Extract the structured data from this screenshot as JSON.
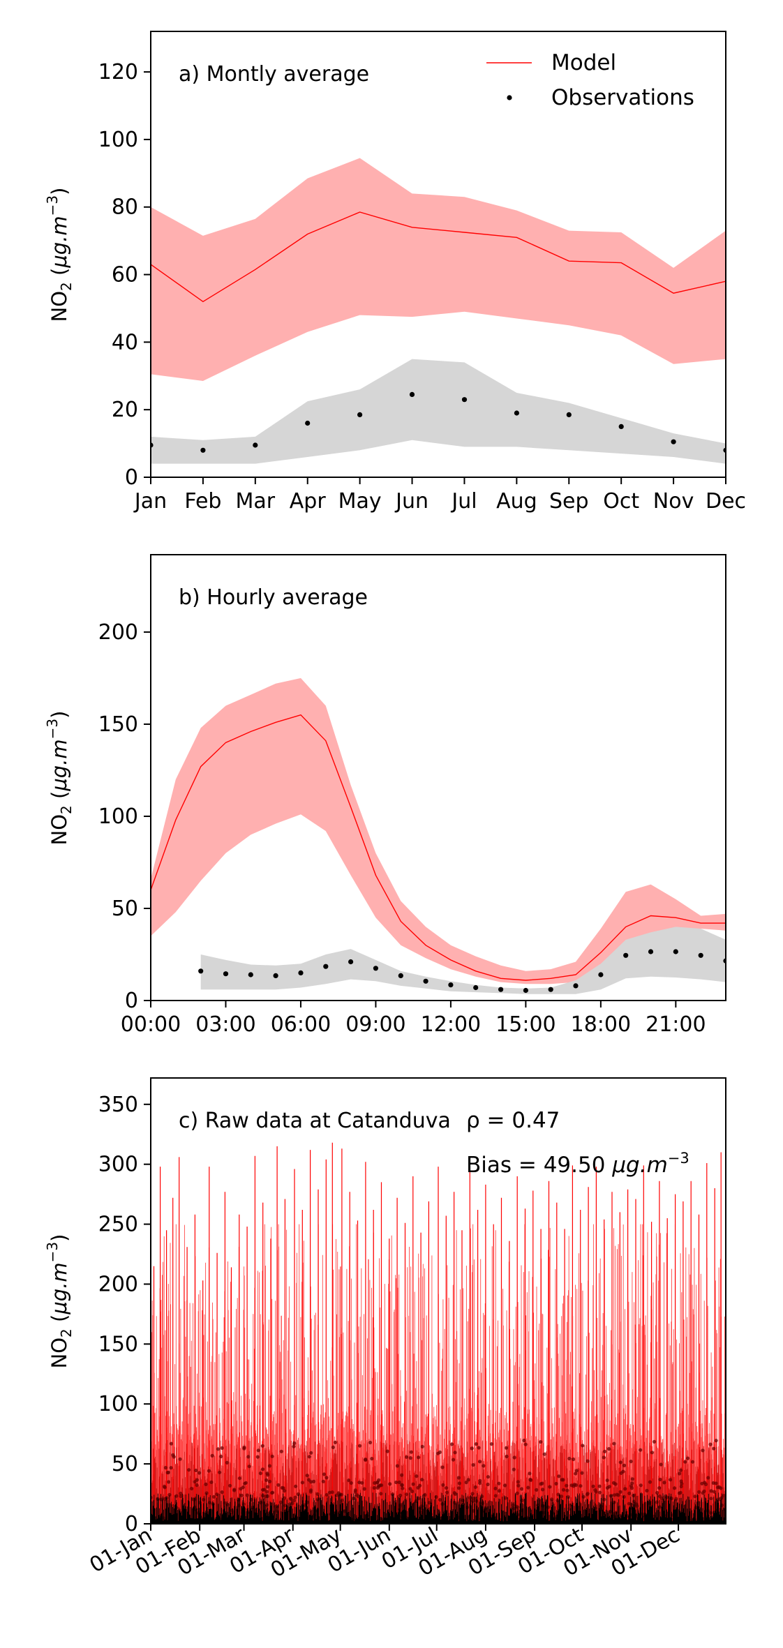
{
  "chart_data": [
    {
      "id": "monthly",
      "type": "line",
      "title": "a) Montly average",
      "ylabel": "NO2 (µg.m−3)",
      "ylim": [
        0,
        132
      ],
      "yticks": [
        0,
        20,
        40,
        60,
        80,
        100,
        120
      ],
      "x": [
        0,
        1,
        2,
        3,
        4,
        5,
        6,
        7,
        8,
        9,
        10,
        11
      ],
      "xlim": [
        0,
        11
      ],
      "xtick_labels": [
        "Jan",
        "Feb",
        "Mar",
        "Apr",
        "May",
        "Jun",
        "Jul",
        "Aug",
        "Sep",
        "Oct",
        "Nov",
        "Dec"
      ],
      "legend": {
        "placement": "top-right",
        "model_label": "Model",
        "obs_label": "Observations"
      },
      "series": [
        {
          "name": "Model",
          "kind": "line",
          "color": "#ff0000",
          "band_color": "#ffb0b0",
          "values": [
            63,
            52,
            61.5,
            72,
            78.5,
            74,
            72.5,
            71,
            64,
            63.5,
            54.5,
            58
          ],
          "band_upper": [
            80,
            71.5,
            76.5,
            88.5,
            94.5,
            84,
            83,
            79,
            73,
            72.5,
            62,
            73
          ],
          "band_lower": [
            30.5,
            28.5,
            36,
            43,
            48,
            47.5,
            49,
            47,
            45,
            42,
            33.5,
            35
          ]
        },
        {
          "name": "Observations",
          "kind": "points",
          "color": "#000000",
          "band_color": "#d6d6d6",
          "values": [
            9.5,
            8,
            9.5,
            16,
            18.5,
            24.5,
            23,
            19,
            18.5,
            15,
            10.5,
            8
          ],
          "band_upper": [
            12,
            11,
            12,
            22.5,
            26,
            35,
            34,
            25,
            22,
            17.5,
            13,
            10
          ],
          "band_lower": [
            4,
            4,
            4,
            6,
            8,
            11,
            9,
            9,
            8,
            7,
            6,
            4
          ]
        }
      ]
    },
    {
      "id": "hourly",
      "type": "line",
      "title": "b) Hourly average",
      "ylabel": "NO2 (µg.m−3)",
      "ylim": [
        0,
        242
      ],
      "yticks": [
        0,
        50,
        100,
        150,
        200
      ],
      "xlim": [
        0,
        23
      ],
      "xticks": [
        0,
        3,
        6,
        9,
        12,
        15,
        18,
        21
      ],
      "xtick_labels": [
        "00:00",
        "03:00",
        "06:00",
        "09:00",
        "12:00",
        "15:00",
        "18:00",
        "21:00"
      ],
      "series": [
        {
          "name": "Model",
          "kind": "line",
          "color": "#ff0000",
          "band_color": "#ffb0b0",
          "x": [
            0,
            1,
            2,
            3,
            4,
            5,
            6,
            7,
            8,
            9,
            10,
            11,
            12,
            13,
            14,
            15,
            16,
            17,
            18,
            19,
            20,
            21,
            22,
            23
          ],
          "values": [
            60,
            98,
            127,
            140,
            146,
            151,
            155,
            141,
            105,
            68,
            43,
            30,
            22,
            16,
            12,
            11,
            12,
            14,
            26,
            40,
            46,
            45,
            42,
            42
          ],
          "band_upper": [
            66,
            120,
            148,
            160,
            166,
            172,
            175,
            160,
            117,
            80,
            54,
            40,
            30,
            24,
            19,
            16,
            17,
            21,
            39,
            59,
            63,
            55,
            46,
            47
          ],
          "band_lower": [
            35,
            48,
            65,
            80,
            90,
            96,
            101,
            92,
            68,
            45,
            30,
            23,
            17,
            13,
            10,
            9,
            9,
            10,
            16,
            25,
            31,
            36,
            39,
            38
          ]
        },
        {
          "name": "Observations",
          "kind": "points",
          "color": "#000000",
          "band_color": "#d6d6d6",
          "x": [
            2,
            3,
            4,
            5,
            6,
            7,
            8,
            9,
            10,
            11,
            12,
            13,
            14,
            15,
            16,
            17,
            18,
            19,
            20,
            21,
            22,
            23
          ],
          "values": [
            16,
            14.5,
            14,
            13.5,
            15,
            18.5,
            21,
            17.5,
            13.5,
            10.5,
            8.5,
            7,
            6,
            5.5,
            6,
            8,
            14,
            24.5,
            26.5,
            26.5,
            24.5,
            21.5
          ],
          "band_upper": [
            25,
            22,
            19.5,
            19,
            20,
            25,
            28,
            22,
            16,
            13,
            10.5,
            8.5,
            7,
            6.5,
            7,
            11,
            20,
            33,
            37,
            40,
            39,
            33
          ],
          "band_lower": [
            6,
            6,
            6,
            6,
            7,
            9,
            11.5,
            10.5,
            8,
            6.5,
            5,
            4.5,
            4,
            3.5,
            3.5,
            3.5,
            6,
            12,
            13,
            12.5,
            11.5,
            10
          ]
        }
      ]
    },
    {
      "id": "raw",
      "type": "line",
      "title": "c) Raw data at Catanduva",
      "ylabel": "NO2 (µg.m−3)",
      "ylim": [
        0,
        372
      ],
      "yticks": [
        0,
        50,
        100,
        150,
        200,
        250,
        300,
        350
      ],
      "xlim": [
        "2019-01-01",
        "2019-12-31"
      ],
      "xticks": [
        "2019-01-01",
        "2019-02-01",
        "2019-03-01",
        "2019-04-01",
        "2019-05-01",
        "2019-06-01",
        "2019-07-01",
        "2019-08-01",
        "2019-09-01",
        "2019-10-01",
        "2019-11-01",
        "2019-12-01"
      ],
      "xtick_labels": [
        "01-Jan",
        "01-Feb",
        "01-Mar",
        "01-Apr",
        "01-May",
        "01-Jun",
        "01-Jul",
        "01-Aug",
        "01-Sep",
        "01-Oct",
        "01-Nov",
        "01-Dec"
      ],
      "annotations": {
        "rho": "ρ = 0.47",
        "bias_prefix": "Bias = 49.50 ",
        "bias_unit": "μg.m",
        "bias_exp": "−3"
      },
      "series": [
        {
          "name": "Model",
          "kind": "line",
          "color": "#ff0000"
        },
        {
          "name": "Observations",
          "kind": "points",
          "color": "#000000"
        }
      ],
      "model_peaks": [
        {
          "x": "2019-01-03",
          "y": 215
        },
        {
          "x": "2019-01-07",
          "y": 298
        },
        {
          "x": "2019-01-11",
          "y": 245
        },
        {
          "x": "2019-01-15",
          "y": 272
        },
        {
          "x": "2019-01-19",
          "y": 306
        },
        {
          "x": "2019-01-24",
          "y": 231
        },
        {
          "x": "2019-01-29",
          "y": 258
        },
        {
          "x": "2019-02-03",
          "y": 203
        },
        {
          "x": "2019-02-07",
          "y": 298
        },
        {
          "x": "2019-02-12",
          "y": 226
        },
        {
          "x": "2019-02-17",
          "y": 277
        },
        {
          "x": "2019-02-21",
          "y": 214
        },
        {
          "x": "2019-02-26",
          "y": 258
        },
        {
          "x": "2019-03-03",
          "y": 248
        },
        {
          "x": "2019-03-08",
          "y": 307
        },
        {
          "x": "2019-03-13",
          "y": 268
        },
        {
          "x": "2019-03-18",
          "y": 238
        },
        {
          "x": "2019-03-22",
          "y": 315
        },
        {
          "x": "2019-03-27",
          "y": 271
        },
        {
          "x": "2019-04-02",
          "y": 296
        },
        {
          "x": "2019-04-07",
          "y": 262
        },
        {
          "x": "2019-04-12",
          "y": 312
        },
        {
          "x": "2019-04-17",
          "y": 279
        },
        {
          "x": "2019-04-22",
          "y": 304
        },
        {
          "x": "2019-04-26",
          "y": 318
        },
        {
          "x": "2019-05-02",
          "y": 313
        },
        {
          "x": "2019-05-07",
          "y": 277
        },
        {
          "x": "2019-05-12",
          "y": 253
        },
        {
          "x": "2019-05-17",
          "y": 302
        },
        {
          "x": "2019-05-22",
          "y": 262
        },
        {
          "x": "2019-05-27",
          "y": 285
        },
        {
          "x": "2019-06-01",
          "y": 238
        },
        {
          "x": "2019-06-06",
          "y": 272
        },
        {
          "x": "2019-06-11",
          "y": 251
        },
        {
          "x": "2019-06-16",
          "y": 290
        },
        {
          "x": "2019-06-21",
          "y": 243
        },
        {
          "x": "2019-06-26",
          "y": 269
        },
        {
          "x": "2019-07-02",
          "y": 298
        },
        {
          "x": "2019-07-07",
          "y": 257
        },
        {
          "x": "2019-07-12",
          "y": 277
        },
        {
          "x": "2019-07-17",
          "y": 245
        },
        {
          "x": "2019-07-22",
          "y": 294
        },
        {
          "x": "2019-07-27",
          "y": 262
        },
        {
          "x": "2019-08-01",
          "y": 283
        },
        {
          "x": "2019-08-06",
          "y": 250
        },
        {
          "x": "2019-08-11",
          "y": 272
        },
        {
          "x": "2019-08-16",
          "y": 236
        },
        {
          "x": "2019-08-21",
          "y": 290
        },
        {
          "x": "2019-08-26",
          "y": 263
        },
        {
          "x": "2019-08-31",
          "y": 278
        },
        {
          "x": "2019-09-05",
          "y": 246
        },
        {
          "x": "2019-09-10",
          "y": 286
        },
        {
          "x": "2019-09-15",
          "y": 268
        },
        {
          "x": "2019-09-20",
          "y": 246
        },
        {
          "x": "2019-09-25",
          "y": 299
        },
        {
          "x": "2019-09-30",
          "y": 262
        },
        {
          "x": "2019-10-05",
          "y": 281
        },
        {
          "x": "2019-10-10",
          "y": 298
        },
        {
          "x": "2019-10-15",
          "y": 254
        },
        {
          "x": "2019-10-20",
          "y": 277
        },
        {
          "x": "2019-10-25",
          "y": 260
        },
        {
          "x": "2019-10-30",
          "y": 279
        },
        {
          "x": "2019-11-04",
          "y": 271
        },
        {
          "x": "2019-11-09",
          "y": 299
        },
        {
          "x": "2019-11-14",
          "y": 252
        },
        {
          "x": "2019-11-19",
          "y": 286
        },
        {
          "x": "2019-11-24",
          "y": 255
        },
        {
          "x": "2019-11-29",
          "y": 275
        },
        {
          "x": "2019-12-04",
          "y": 269
        },
        {
          "x": "2019-12-09",
          "y": 286
        },
        {
          "x": "2019-12-14",
          "y": 258
        },
        {
          "x": "2019-12-19",
          "y": 301
        },
        {
          "x": "2019-12-24",
          "y": 280
        },
        {
          "x": "2019-12-28",
          "y": 310
        }
      ]
    }
  ]
}
